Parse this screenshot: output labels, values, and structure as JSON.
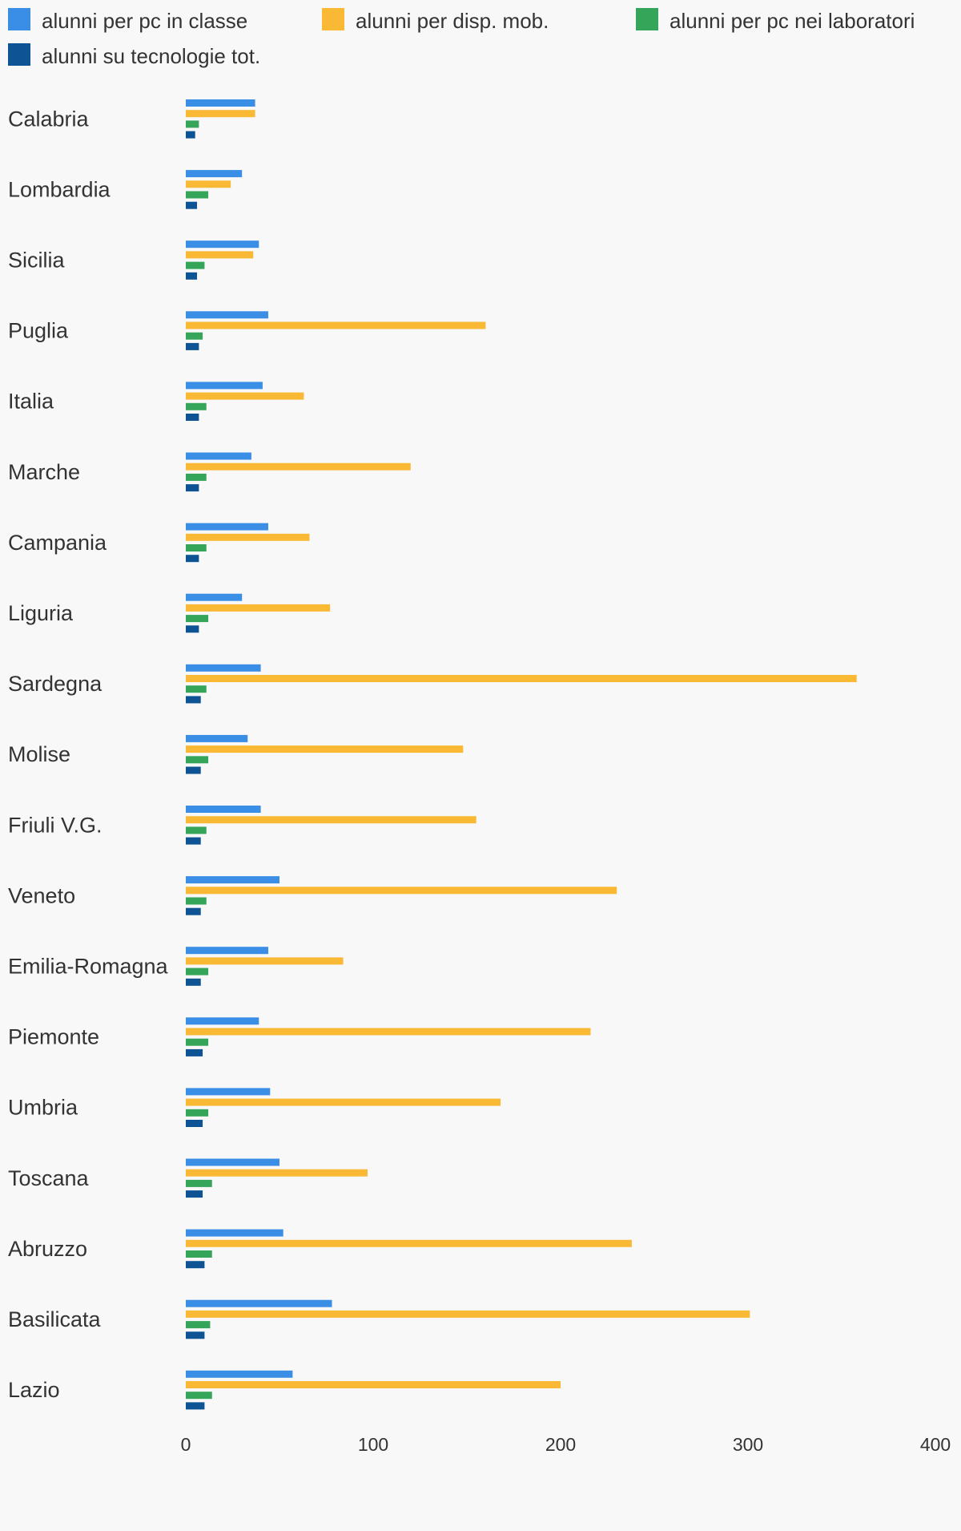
{
  "chart_data": {
    "type": "bar",
    "orientation": "horizontal",
    "title": "",
    "xlabel": "",
    "ylabel": "",
    "xlim": [
      0,
      400
    ],
    "xticks": [
      0,
      100,
      200,
      300,
      400
    ],
    "grid": false,
    "legend_position": "top",
    "categories": [
      "Calabria",
      "Lombardia",
      "Sicilia",
      "Puglia",
      "Italia",
      "Marche",
      "Campania",
      "Liguria",
      "Sardegna",
      "Molise",
      "Friuli V.G.",
      "Veneto",
      "Emilia-Romagna",
      "Piemonte",
      "Umbria",
      "Toscana",
      "Abruzzo",
      "Basilicata",
      "Lazio"
    ],
    "series": [
      {
        "name": "alunni per pc in classe",
        "color": "#3a8ee6",
        "values": [
          37,
          30,
          39,
          44,
          41,
          35,
          44,
          30,
          40,
          33,
          40,
          50,
          44,
          39,
          45,
          50,
          52,
          78,
          57
        ]
      },
      {
        "name": "alunni per disp. mob.",
        "color": "#f9b935",
        "values": [
          37,
          24,
          36,
          160,
          63,
          120,
          66,
          77,
          358,
          148,
          155,
          230,
          84,
          216,
          168,
          97,
          238,
          301,
          200
        ]
      },
      {
        "name": "alunni per pc nei laboratori",
        "color": "#35a55a",
        "values": [
          7,
          12,
          10,
          9,
          11,
          11,
          11,
          12,
          11,
          12,
          11,
          11,
          12,
          12,
          12,
          14,
          14,
          13,
          14
        ]
      },
      {
        "name": "alunni su tecnologie tot.",
        "color": "#0e5495",
        "values": [
          5,
          6,
          6,
          7,
          7,
          7,
          7,
          7,
          8,
          8,
          8,
          8,
          8,
          9,
          9,
          9,
          10,
          10,
          10
        ]
      }
    ]
  }
}
